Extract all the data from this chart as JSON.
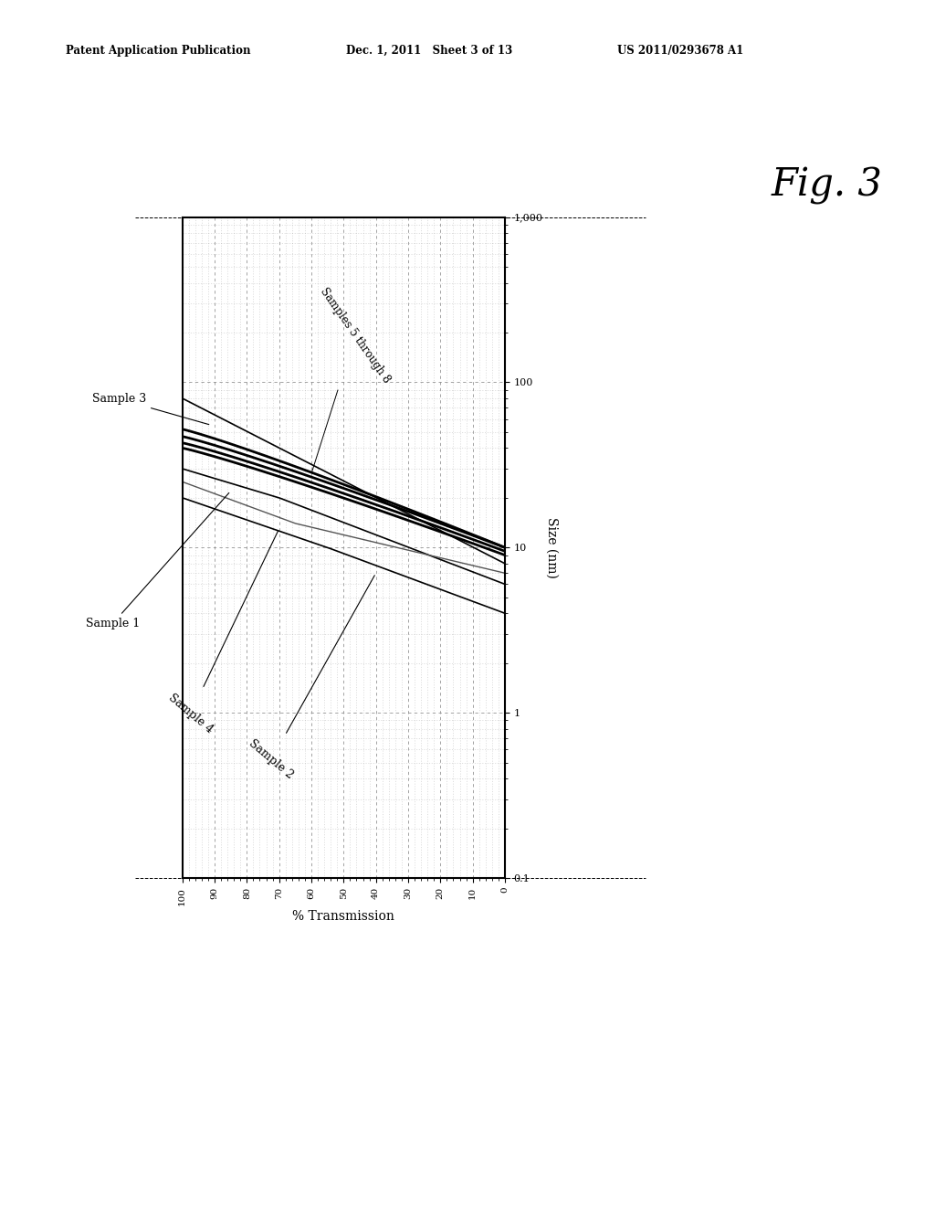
{
  "xlabel": "% Transmission",
  "ylabel": "Size (nm)",
  "xlim": [
    100,
    0
  ],
  "ylim_log": [
    0.1,
    1000
  ],
  "bg_color": "#ffffff",
  "header_left": "Patent Application Publication",
  "header_mid": "Dec. 1, 2011   Sheet 3 of 13",
  "header_right": "US 2011/0293678 A1",
  "fig_label": "Fig. 3",
  "curve_colors": {
    "sample3": "black",
    "sample5": "black",
    "sample6": "black",
    "sample7": "black",
    "sample8": "black",
    "sample1": "black",
    "sample4": "#555555",
    "sample2": "black"
  },
  "curve_lw": {
    "sample3": 1.2,
    "sample5": 2.0,
    "sample6": 2.0,
    "sample7": 2.0,
    "sample8": 2.0,
    "sample1": 1.2,
    "sample4": 1.0,
    "sample2": 1.2
  }
}
